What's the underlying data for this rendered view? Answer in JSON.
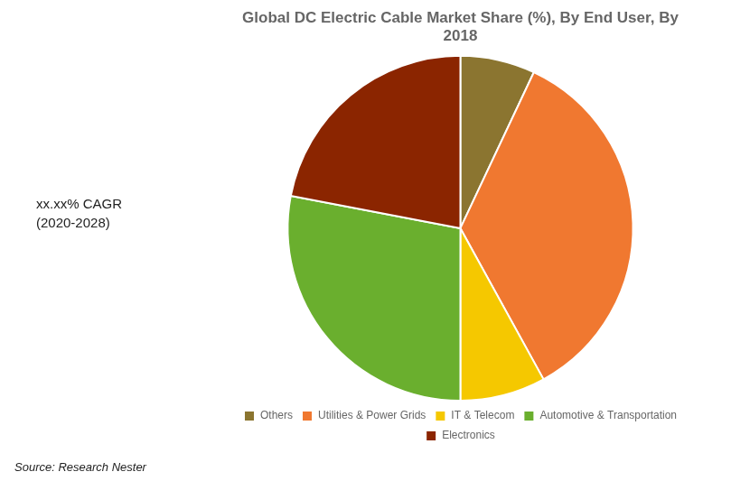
{
  "chart_data": {
    "type": "pie",
    "title": "Global DC Electric Cable Market Share (%), By End User, By\n2018",
    "categories": [
      "Others",
      "Utilities & Power Grids",
      "IT & Telecom",
      "Automotive & Transportation",
      "Electronics"
    ],
    "values": [
      7,
      35,
      8,
      28,
      22
    ],
    "colors": [
      "#8B7530",
      "#F07830",
      "#F5C800",
      "#6AAF2E",
      "#8B2500"
    ],
    "legend": "bottom",
    "annotations": [
      "xx.xx% CAGR",
      "(2020-2028)",
      "Source: Research Nester"
    ]
  }
}
